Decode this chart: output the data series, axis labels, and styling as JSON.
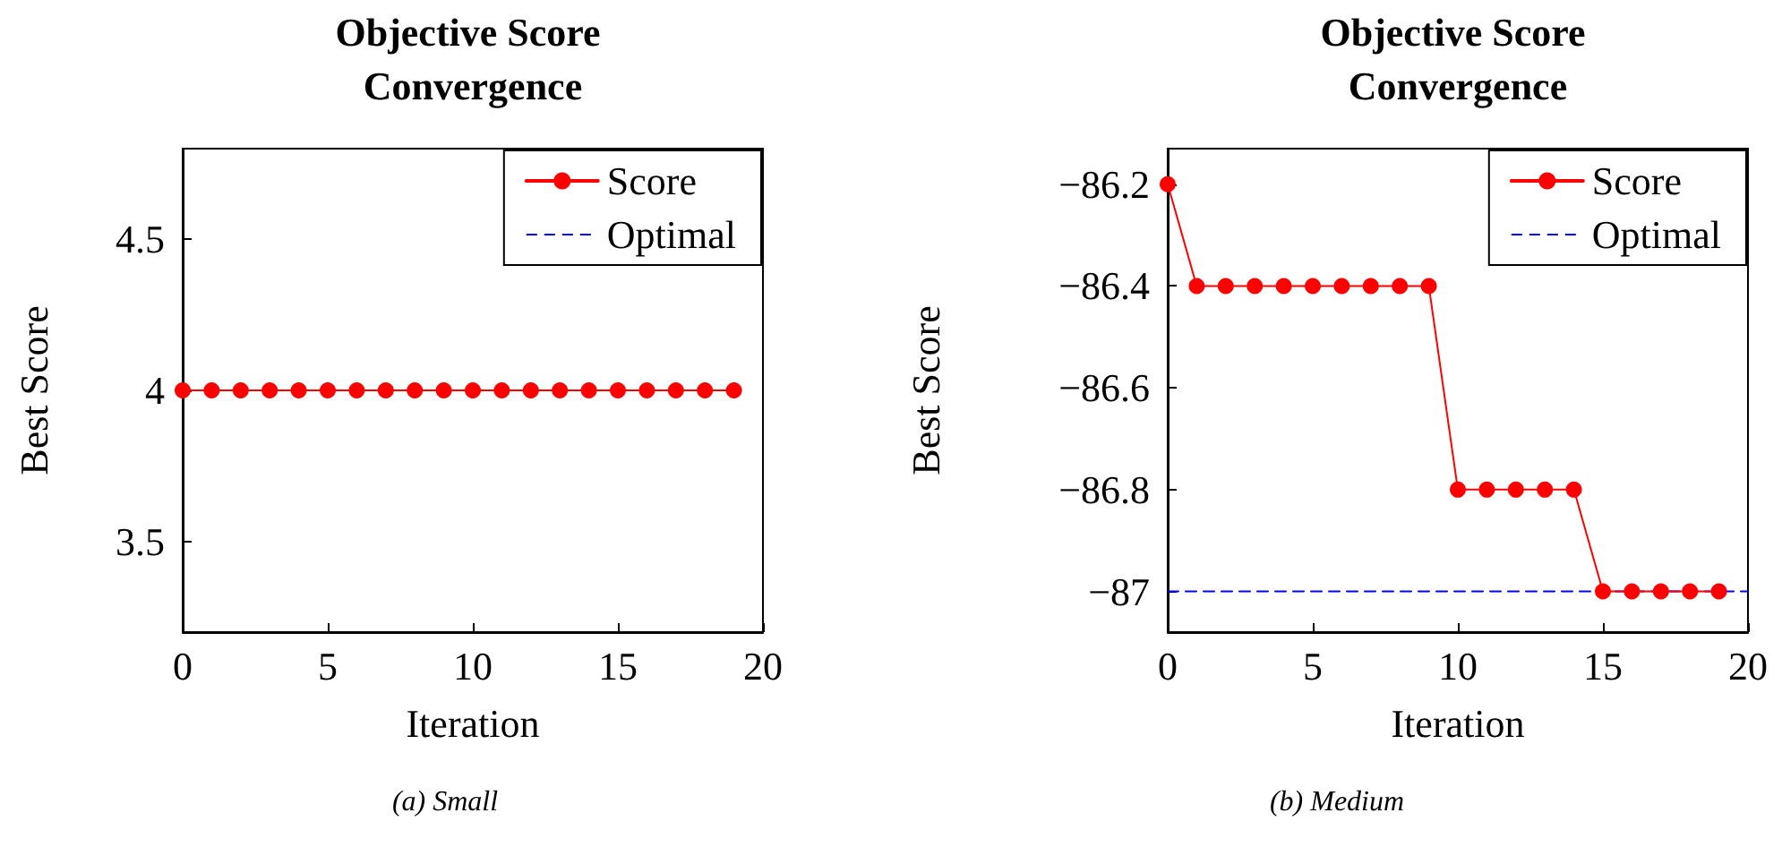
{
  "chart_data": [
    {
      "type": "line",
      "title": "Objective Score Convergence",
      "xlabel": "Iteration",
      "ylabel": "Best Score",
      "annotations": [
        "(a) Small"
      ],
      "x": [
        0,
        1,
        2,
        3,
        4,
        5,
        6,
        7,
        8,
        9,
        10,
        11,
        12,
        13,
        14,
        15,
        16,
        17,
        18,
        19
      ],
      "series": [
        {
          "name": "Score",
          "color": "#ff0000",
          "marker": "circle",
          "line_style": "solid",
          "values": [
            4,
            4,
            4,
            4,
            4,
            4,
            4,
            4,
            4,
            4,
            4,
            4,
            4,
            4,
            4,
            4,
            4,
            4,
            4,
            4
          ]
        },
        {
          "name": "Optimal",
          "color": "#0000ff",
          "marker": "none",
          "line_style": "dashed",
          "values": [
            null,
            null,
            null,
            null,
            null,
            null,
            null,
            null,
            null,
            null,
            null,
            null,
            null,
            null,
            null,
            null,
            null,
            null,
            null,
            null
          ]
        }
      ],
      "xlim": [
        0,
        20
      ],
      "xticks": [
        0,
        5,
        10,
        15,
        20
      ],
      "ylim": [
        3.2,
        4.8
      ],
      "yticks": [
        3.5,
        4,
        4.5
      ],
      "grid": false,
      "legend": "top right"
    },
    {
      "type": "line",
      "title": "Objective Score Convergence",
      "xlabel": "Iteration",
      "ylabel": "Best Score",
      "annotations": [
        "(b) Medium"
      ],
      "x": [
        0,
        1,
        2,
        3,
        4,
        5,
        6,
        7,
        8,
        9,
        10,
        11,
        12,
        13,
        14,
        15,
        16,
        17,
        18,
        19
      ],
      "series": [
        {
          "name": "Score",
          "color": "#ff0000",
          "marker": "circle",
          "line_style": "solid",
          "values": [
            -86.2,
            -86.4,
            -86.4,
            -86.4,
            -86.4,
            -86.4,
            -86.4,
            -86.4,
            -86.4,
            -86.4,
            -86.8,
            -86.8,
            -86.8,
            -86.8,
            -86.8,
            -87,
            -87,
            -87,
            -87,
            -87
          ]
        },
        {
          "name": "Optimal",
          "color": "#0000ff",
          "marker": "none",
          "line_style": "dashed",
          "x": [
            0,
            20
          ],
          "values": [
            -87,
            -87
          ]
        }
      ],
      "xlim": [
        0,
        20
      ],
      "xticks": [
        0,
        5,
        10,
        15,
        20
      ],
      "ylim": [
        -87.08,
        -86.13
      ],
      "yticks": [
        {
          "value": -87,
          "label": "−87"
        },
        {
          "value": -86.8,
          "label": "−86.8"
        },
        {
          "value": -86.6,
          "label": "−86.6"
        },
        {
          "value": -86.4,
          "label": "−86.4"
        },
        {
          "value": -86.2,
          "label": "−86.2"
        }
      ],
      "grid": false,
      "legend": "top right"
    }
  ]
}
